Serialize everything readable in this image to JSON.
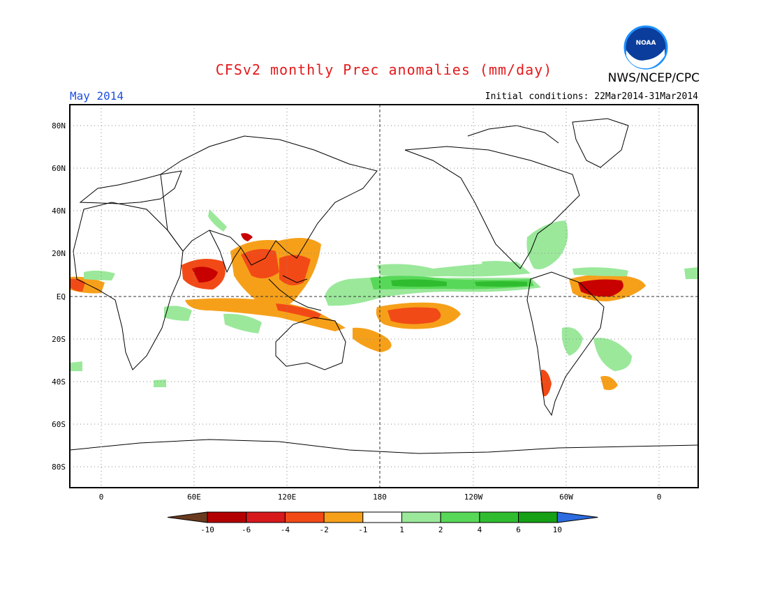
{
  "header": {
    "title": "CFSv2 monthly Prec anomalies (mm/day)",
    "agency": "NWS/NCEP/CPC",
    "logo_text": "NOAA",
    "month": "May 2014",
    "initial_conditions": "Initial conditions: 22Mar2014-31Mar2014"
  },
  "map": {
    "lat_labels": [
      "80N",
      "60N",
      "40N",
      "20N",
      "EQ",
      "20S",
      "40S",
      "60S",
      "80S"
    ],
    "lon_labels": [
      "0",
      "60E",
      "120E",
      "180",
      "120W",
      "60W",
      "0"
    ]
  },
  "legend": {
    "tick_labels": [
      "-10",
      "-6",
      "-4",
      "-2",
      "-1",
      "1",
      "2",
      "4",
      "6",
      "10"
    ],
    "colors": [
      "#6b3a1e",
      "#b30000",
      "#d7191c",
      "#f24a17",
      "#f6a01a",
      "#ffffff",
      "#9be89b",
      "#58d858",
      "#2fbd2f",
      "#15a015",
      "#2d6be0"
    ]
  },
  "anomaly_colors": {
    "dry_mild": "#f6a01a",
    "dry_moderate": "#f24a17",
    "dry_strong": "#c80000",
    "wet_mild": "#9be89b",
    "wet_moderate": "#58d858",
    "wet_strong": "#2fbd2f"
  }
}
